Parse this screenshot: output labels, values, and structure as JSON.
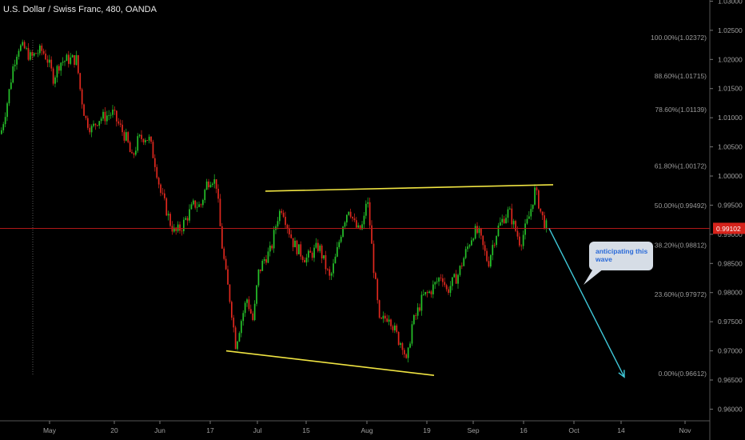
{
  "header": {
    "title": "U.S. Dollar / Swiss Franc, 480, OANDA"
  },
  "annotation": {
    "text": "anticipating this wave",
    "color": "#2a6ad8"
  },
  "colors": {
    "background": "#000000",
    "up_candle": "#26c22a",
    "down_candle": "#e0281e",
    "trendline": "#f0e442",
    "projection_arrow": "#3fc8d8",
    "price_line": "#b01818",
    "price_badge": "#d6231b",
    "axis_text": "#a0a0a0"
  },
  "chart_data": {
    "type": "candlestick",
    "title": "U.S. Dollar / Swiss Franc, 480, OANDA",
    "ylim": [
      0.958,
      1.0302
    ],
    "y_ticks": [
      "1.03000",
      "1.02500",
      "1.02000",
      "1.01500",
      "1.01000",
      "1.00500",
      "1.00000",
      "0.99500",
      "0.99000",
      "0.98500",
      "0.98000",
      "0.97500",
      "0.97000",
      "0.96500",
      "0.96000"
    ],
    "x_ticks": [
      "May",
      "20",
      "Jun",
      "17",
      "Jul",
      "15",
      "Aug",
      "19",
      "Sep",
      "16",
      "Oct",
      "14",
      "Nov"
    ],
    "current_price": "0.99102",
    "fibonacci_levels": [
      {
        "label": "100.00%(1.02372)",
        "value": 1.02372
      },
      {
        "label": "88.60%(1.01715)",
        "value": 1.01715
      },
      {
        "label": "78.60%(1.01139)",
        "value": 1.01139
      },
      {
        "label": "61.80%(1.00172)",
        "value": 1.00172
      },
      {
        "label": "50.00%(0.99492)",
        "value": 0.99492
      },
      {
        "label": "38.20%(0.98812)",
        "value": 0.98812
      },
      {
        "label": "23.60%(0.97972)",
        "value": 0.97972
      },
      {
        "label": "0.00%(0.96612)",
        "value": 0.96612
      }
    ],
    "price_path": [
      [
        0,
        1.0072
      ],
      [
        9,
        1.0132
      ],
      [
        16,
        1.0192
      ],
      [
        22,
        1.0222
      ],
      [
        30,
        1.0218
      ],
      [
        38,
        1.0202
      ],
      [
        45,
        1.0212
      ],
      [
        52,
        1.0215
      ],
      [
        58,
        1.0202
      ],
      [
        66,
        1.0168
      ],
      [
        74,
        1.0195
      ],
      [
        84,
        1.02
      ],
      [
        95,
        1.02
      ],
      [
        100,
        1.0142
      ],
      [
        106,
        1.0098
      ],
      [
        114,
        1.008
      ],
      [
        122,
        1.0098
      ],
      [
        130,
        1.0102
      ],
      [
        140,
        1.0108
      ],
      [
        150,
        1.0082
      ],
      [
        158,
        1.0062
      ],
      [
        164,
        1.0028
      ],
      [
        172,
        1.0062
      ],
      [
        180,
        1.0068
      ],
      [
        186,
        1.0062
      ],
      [
        194,
        1.0018
      ],
      [
        200,
        0.9972
      ],
      [
        206,
        0.9948
      ],
      [
        212,
        0.992
      ],
      [
        218,
        0.9902
      ],
      [
        226,
        0.9912
      ],
      [
        234,
        0.9932
      ],
      [
        242,
        0.9952
      ],
      [
        250,
        0.9948
      ],
      [
        258,
        0.9988
      ],
      [
        264,
        0.9998
      ],
      [
        270,
        0.9985
      ],
      [
        276,
        0.989
      ],
      [
        282,
        0.9828
      ],
      [
        288,
        0.9778
      ],
      [
        294,
        0.971
      ],
      [
        300,
        0.9748
      ],
      [
        308,
        0.979
      ],
      [
        316,
        0.975
      ],
      [
        322,
        0.9832
      ],
      [
        330,
        0.9858
      ],
      [
        338,
        0.9872
      ],
      [
        346,
        0.9928
      ],
      [
        352,
        0.9948
      ],
      [
        358,
        0.9918
      ],
      [
        366,
        0.9885
      ],
      [
        374,
        0.987
      ],
      [
        382,
        0.9858
      ],
      [
        390,
        0.9868
      ],
      [
        398,
        0.988
      ],
      [
        404,
        0.9855
      ],
      [
        412,
        0.9822
      ],
      [
        420,
        0.9865
      ],
      [
        428,
        0.9918
      ],
      [
        436,
        0.9948
      ],
      [
        442,
        0.9918
      ],
      [
        448,
        0.9905
      ],
      [
        454,
        0.9918
      ],
      [
        458,
        0.9968
      ],
      [
        462,
        0.9915
      ],
      [
        466,
        0.985
      ],
      [
        470,
        0.98
      ],
      [
        474,
        0.9745
      ],
      [
        480,
        0.9755
      ],
      [
        486,
        0.9762
      ],
      [
        492,
        0.9738
      ],
      [
        498,
        0.9718
      ],
      [
        503,
        0.9712
      ],
      [
        508,
        0.9675
      ],
      [
        514,
        0.9742
      ],
      [
        520,
        0.9762
      ],
      [
        528,
        0.9792
      ],
      [
        536,
        0.98
      ],
      [
        544,
        0.9815
      ],
      [
        552,
        0.9832
      ],
      [
        558,
        0.9802
      ],
      [
        564,
        0.9815
      ],
      [
        572,
        0.983
      ],
      [
        580,
        0.9862
      ],
      [
        586,
        0.9885
      ],
      [
        592,
        0.9905
      ],
      [
        598,
        0.9902
      ],
      [
        604,
        0.9875
      ],
      [
        610,
        0.985
      ],
      [
        616,
        0.9885
      ],
      [
        622,
        0.991
      ],
      [
        630,
        0.993
      ],
      [
        636,
        0.994
      ],
      [
        642,
        0.9915
      ],
      [
        650,
        0.9885
      ],
      [
        656,
        0.9908
      ],
      [
        662,
        0.9935
      ],
      [
        668,
        0.9975
      ],
      [
        672,
        0.996
      ],
      [
        676,
        0.9935
      ],
      [
        680,
        0.992
      ],
      [
        684,
        0.991
      ]
    ],
    "trendlines": [
      {
        "name": "upper",
        "from": [
          "Jul 01",
          0.9974
        ],
        "to": [
          "Sep 22",
          0.9985
        ]
      },
      {
        "name": "lower",
        "from": [
          "Jun 24",
          0.97
        ],
        "to": [
          "Aug 25",
          0.9658
        ]
      }
    ],
    "projection": {
      "from": 0.991,
      "to": 0.9655
    }
  }
}
